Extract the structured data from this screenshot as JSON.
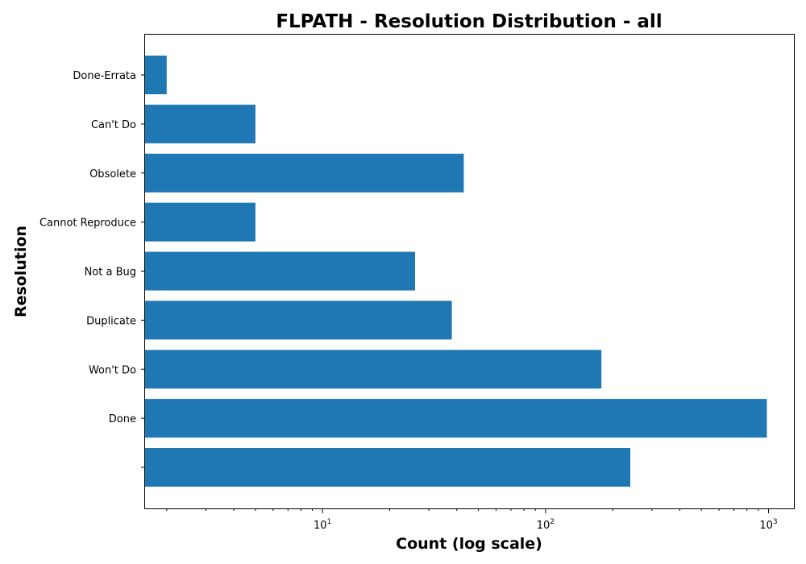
{
  "chart_data": {
    "type": "bar",
    "orientation": "horizontal",
    "title": "FLPATH - Resolution Distribution - all",
    "xlabel": "Count (log scale)",
    "ylabel": "Resolution",
    "x_scale": "log",
    "xlim": [
      1.6,
      1300
    ],
    "x_ticks": [
      {
        "value": 10,
        "base": "10",
        "exp": "1"
      },
      {
        "value": 100,
        "base": "10",
        "exp": "2"
      },
      {
        "value": 1000,
        "base": "10",
        "exp": "3"
      }
    ],
    "categories": [
      "",
      "Done",
      "Won't Do",
      "Duplicate",
      "Not a Bug",
      "Cannot Reproduce",
      "Obsolete",
      "Can't Do",
      "Done-Errata"
    ],
    "values": [
      240,
      983,
      178,
      38,
      26,
      5,
      43,
      5,
      2
    ],
    "bar_color": "#1f77b4",
    "grid": false
  }
}
